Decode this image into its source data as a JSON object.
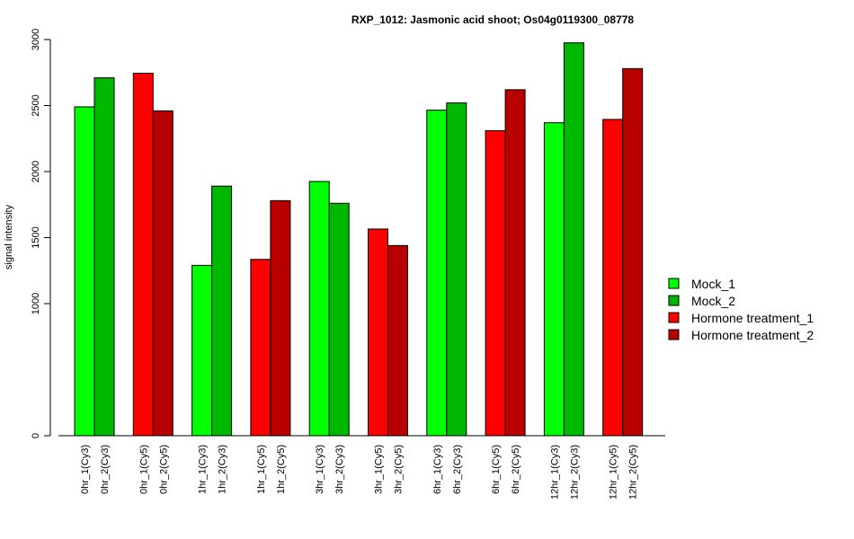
{
  "chart_data": {
    "type": "bar",
    "title": "RXP_1012: Jasmonic acid shoot; Os04g0119300_08778",
    "ylabel": "signal intensity",
    "xlabel": "",
    "ylim": [
      0,
      3000
    ],
    "yticks": [
      "0",
      "1000",
      "1500",
      "2000",
      "2500",
      "3000"
    ],
    "legend_position": "right",
    "legend": [
      {
        "label": "Mock_1",
        "color": "#00ff00"
      },
      {
        "label": "Mock_2",
        "color": "#00b800"
      },
      {
        "label": "Hormone treatment_1",
        "color": "#ff0000"
      },
      {
        "label": "Hormone treatment_2",
        "color": "#b80000"
      }
    ],
    "groups": [
      {
        "bars": [
          {
            "label": "0hr_1(Cy3)",
            "value": 2490,
            "color": "#00ff00"
          },
          {
            "label": "0hr_2(Cy3)",
            "value": 2710,
            "color": "#00b800"
          }
        ]
      },
      {
        "bars": [
          {
            "label": "0hr_1(Cy5)",
            "value": 2745,
            "color": "#ff0000"
          },
          {
            "label": "0hr_2(Cy5)",
            "value": 2460,
            "color": "#b80000"
          }
        ]
      },
      {
        "bars": [
          {
            "label": "1hr_1(Cy3)",
            "value": 1290,
            "color": "#00ff00"
          },
          {
            "label": "1hr_2(Cy3)",
            "value": 1890,
            "color": "#00b800"
          }
        ]
      },
      {
        "bars": [
          {
            "label": "1hr_1(Cy5)",
            "value": 1335,
            "color": "#ff0000"
          },
          {
            "label": "1hr_2(Cy5)",
            "value": 1780,
            "color": "#b80000"
          }
        ]
      },
      {
        "bars": [
          {
            "label": "3hr_1(Cy3)",
            "value": 1925,
            "color": "#00ff00"
          },
          {
            "label": "3hr_2(Cy3)",
            "value": 1760,
            "color": "#00b800"
          }
        ]
      },
      {
        "bars": [
          {
            "label": "3hr_1(Cy5)",
            "value": 1565,
            "color": "#ff0000"
          },
          {
            "label": "3hr_2(Cy5)",
            "value": 1440,
            "color": "#b80000"
          }
        ]
      },
      {
        "bars": [
          {
            "label": "6hr_1(Cy3)",
            "value": 2465,
            "color": "#00ff00"
          },
          {
            "label": "6hr_2(Cy3)",
            "value": 2520,
            "color": "#00b800"
          }
        ]
      },
      {
        "bars": [
          {
            "label": "6hr_1(Cy5)",
            "value": 2310,
            "color": "#ff0000"
          },
          {
            "label": "6hr_2(Cy5)",
            "value": 2620,
            "color": "#b80000"
          }
        ]
      },
      {
        "bars": [
          {
            "label": "12hr_1(Cy3)",
            "value": 2370,
            "color": "#00ff00"
          },
          {
            "label": "12hr_2(Cy3)",
            "value": 2975,
            "color": "#00b800"
          }
        ]
      },
      {
        "bars": [
          {
            "label": "12hr_1(Cy5)",
            "value": 2395,
            "color": "#ff0000"
          },
          {
            "label": "12hr_2(Cy5)",
            "value": 2780,
            "color": "#b80000"
          }
        ]
      }
    ]
  }
}
